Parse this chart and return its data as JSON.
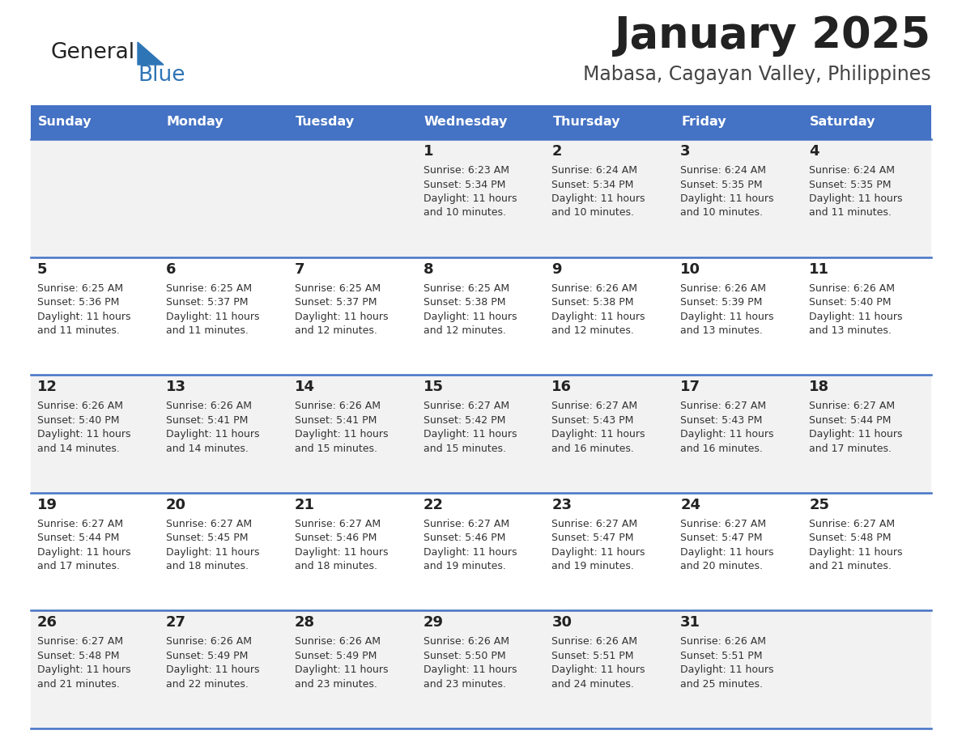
{
  "title": "January 2025",
  "subtitle": "Mabasa, Cagayan Valley, Philippines",
  "days_of_week": [
    "Sunday",
    "Monday",
    "Tuesday",
    "Wednesday",
    "Thursday",
    "Friday",
    "Saturday"
  ],
  "header_bg": "#4472C4",
  "header_text": "#FFFFFF",
  "row_bg_odd": "#F2F2F2",
  "row_bg_even": "#FFFFFF",
  "text_color": "#333333",
  "day_number_color": "#222222",
  "line_color": "#4472C4",
  "title_color": "#222222",
  "subtitle_color": "#444444",
  "logo_general_color": "#222222",
  "logo_blue_color": "#2E75B6",
  "calendar_data": [
    [
      null,
      null,
      null,
      {
        "day": 1,
        "sunrise": "6:23 AM",
        "sunset": "5:34 PM",
        "daylight": "11 hours and 10 minutes."
      },
      {
        "day": 2,
        "sunrise": "6:24 AM",
        "sunset": "5:34 PM",
        "daylight": "11 hours and 10 minutes."
      },
      {
        "day": 3,
        "sunrise": "6:24 AM",
        "sunset": "5:35 PM",
        "daylight": "11 hours and 10 minutes."
      },
      {
        "day": 4,
        "sunrise": "6:24 AM",
        "sunset": "5:35 PM",
        "daylight": "11 hours and 11 minutes."
      }
    ],
    [
      {
        "day": 5,
        "sunrise": "6:25 AM",
        "sunset": "5:36 PM",
        "daylight": "11 hours and 11 minutes."
      },
      {
        "day": 6,
        "sunrise": "6:25 AM",
        "sunset": "5:37 PM",
        "daylight": "11 hours and 11 minutes."
      },
      {
        "day": 7,
        "sunrise": "6:25 AM",
        "sunset": "5:37 PM",
        "daylight": "11 hours and 12 minutes."
      },
      {
        "day": 8,
        "sunrise": "6:25 AM",
        "sunset": "5:38 PM",
        "daylight": "11 hours and 12 minutes."
      },
      {
        "day": 9,
        "sunrise": "6:26 AM",
        "sunset": "5:38 PM",
        "daylight": "11 hours and 12 minutes."
      },
      {
        "day": 10,
        "sunrise": "6:26 AM",
        "sunset": "5:39 PM",
        "daylight": "11 hours and 13 minutes."
      },
      {
        "day": 11,
        "sunrise": "6:26 AM",
        "sunset": "5:40 PM",
        "daylight": "11 hours and 13 minutes."
      }
    ],
    [
      {
        "day": 12,
        "sunrise": "6:26 AM",
        "sunset": "5:40 PM",
        "daylight": "11 hours and 14 minutes."
      },
      {
        "day": 13,
        "sunrise": "6:26 AM",
        "sunset": "5:41 PM",
        "daylight": "11 hours and 14 minutes."
      },
      {
        "day": 14,
        "sunrise": "6:26 AM",
        "sunset": "5:41 PM",
        "daylight": "11 hours and 15 minutes."
      },
      {
        "day": 15,
        "sunrise": "6:27 AM",
        "sunset": "5:42 PM",
        "daylight": "11 hours and 15 minutes."
      },
      {
        "day": 16,
        "sunrise": "6:27 AM",
        "sunset": "5:43 PM",
        "daylight": "11 hours and 16 minutes."
      },
      {
        "day": 17,
        "sunrise": "6:27 AM",
        "sunset": "5:43 PM",
        "daylight": "11 hours and 16 minutes."
      },
      {
        "day": 18,
        "sunrise": "6:27 AM",
        "sunset": "5:44 PM",
        "daylight": "11 hours and 17 minutes."
      }
    ],
    [
      {
        "day": 19,
        "sunrise": "6:27 AM",
        "sunset": "5:44 PM",
        "daylight": "11 hours and 17 minutes."
      },
      {
        "day": 20,
        "sunrise": "6:27 AM",
        "sunset": "5:45 PM",
        "daylight": "11 hours and 18 minutes."
      },
      {
        "day": 21,
        "sunrise": "6:27 AM",
        "sunset": "5:46 PM",
        "daylight": "11 hours and 18 minutes."
      },
      {
        "day": 22,
        "sunrise": "6:27 AM",
        "sunset": "5:46 PM",
        "daylight": "11 hours and 19 minutes."
      },
      {
        "day": 23,
        "sunrise": "6:27 AM",
        "sunset": "5:47 PM",
        "daylight": "11 hours and 19 minutes."
      },
      {
        "day": 24,
        "sunrise": "6:27 AM",
        "sunset": "5:47 PM",
        "daylight": "11 hours and 20 minutes."
      },
      {
        "day": 25,
        "sunrise": "6:27 AM",
        "sunset": "5:48 PM",
        "daylight": "11 hours and 21 minutes."
      }
    ],
    [
      {
        "day": 26,
        "sunrise": "6:27 AM",
        "sunset": "5:48 PM",
        "daylight": "11 hours and 21 minutes."
      },
      {
        "day": 27,
        "sunrise": "6:26 AM",
        "sunset": "5:49 PM",
        "daylight": "11 hours and 22 minutes."
      },
      {
        "day": 28,
        "sunrise": "6:26 AM",
        "sunset": "5:49 PM",
        "daylight": "11 hours and 23 minutes."
      },
      {
        "day": 29,
        "sunrise": "6:26 AM",
        "sunset": "5:50 PM",
        "daylight": "11 hours and 23 minutes."
      },
      {
        "day": 30,
        "sunrise": "6:26 AM",
        "sunset": "5:51 PM",
        "daylight": "11 hours and 24 minutes."
      },
      {
        "day": 31,
        "sunrise": "6:26 AM",
        "sunset": "5:51 PM",
        "daylight": "11 hours and 25 minutes."
      },
      null
    ]
  ]
}
